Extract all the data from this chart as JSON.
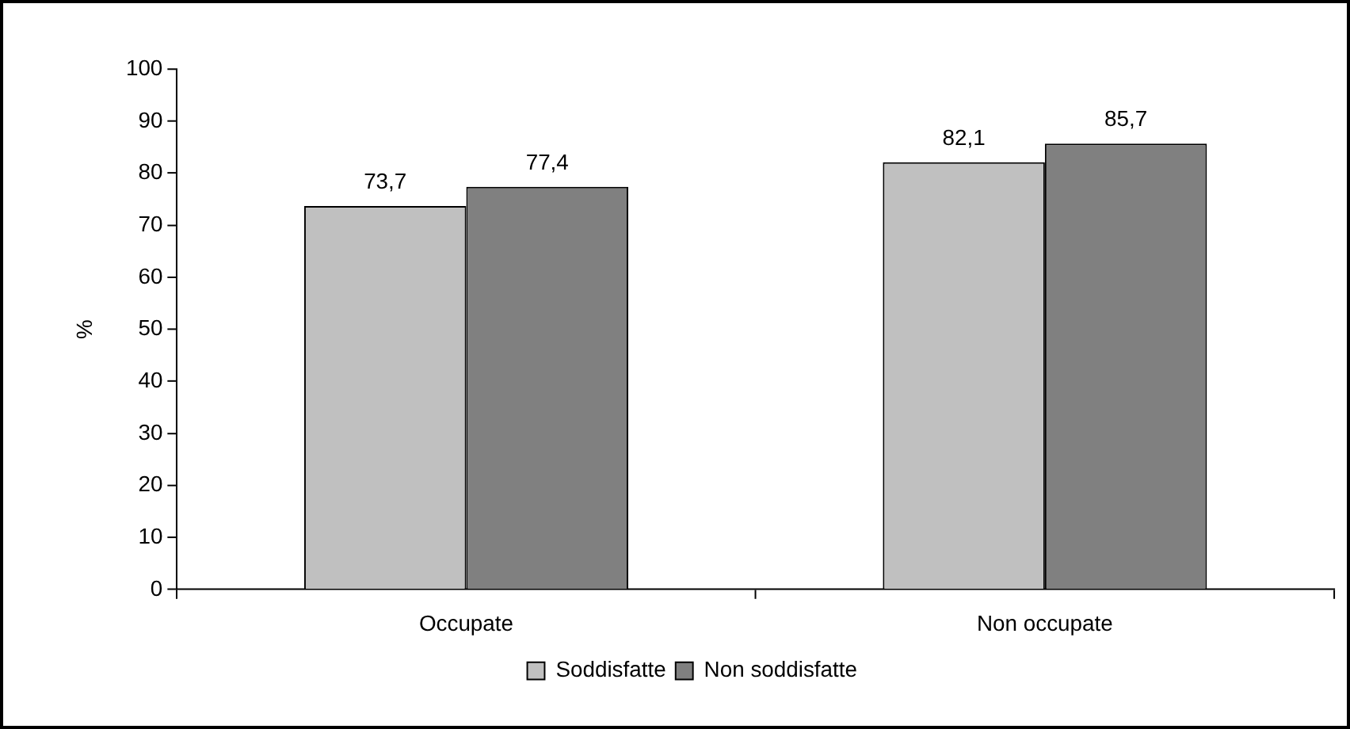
{
  "chart_data": {
    "type": "bar",
    "ylabel": "%",
    "categories": [
      "Occupate",
      "Non occupate"
    ],
    "series": [
      {
        "name": "Soddisfatte",
        "color": "#c0c0c0",
        "values": [
          73.7,
          82.1
        ],
        "value_labels": [
          "73,7",
          "82,1"
        ]
      },
      {
        "name": "Non soddisfatte",
        "color": "#808080",
        "values": [
          77.4,
          85.7
        ],
        "value_labels": [
          "77,4",
          "85,7"
        ]
      }
    ],
    "ylim": [
      0,
      100
    ],
    "yticks": [
      0,
      10,
      20,
      30,
      40,
      50,
      60,
      70,
      80,
      90,
      100
    ],
    "grid": false,
    "legend": "bottom"
  }
}
